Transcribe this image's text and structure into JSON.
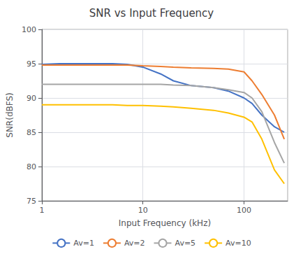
{
  "chart_data": {
    "type": "line",
    "title": "SNR vs Input Frequency",
    "x_label": "Input Frequency (kHz)",
    "y_label": "SNR(dBFS)",
    "log": "x",
    "xlim": [
      1,
      270
    ],
    "xticks": [
      1,
      10,
      100
    ],
    "ylim": [
      75,
      100
    ],
    "yticks": [
      75,
      80,
      85,
      90,
      95,
      100
    ],
    "grid": true,
    "legend": "bottom",
    "x": [
      1,
      1.5,
      2,
      3,
      5,
      7,
      10,
      15,
      20,
      30,
      50,
      70,
      100,
      120,
      150,
      200,
      250
    ],
    "series": [
      {
        "name": "Av=1",
        "color": "#4472C4",
        "values": [
          94.9,
          95.0,
          95.0,
          95.0,
          95.0,
          94.9,
          94.5,
          93.5,
          92.5,
          91.8,
          91.5,
          91.0,
          90.0,
          89.2,
          87.5,
          85.8,
          85.0
        ]
      },
      {
        "name": "Av=2",
        "color": "#ED7D31",
        "values": [
          94.8,
          94.8,
          94.8,
          94.8,
          94.8,
          94.8,
          94.7,
          94.6,
          94.5,
          94.4,
          94.3,
          94.2,
          93.8,
          92.5,
          90.5,
          87.5,
          84.0
        ]
      },
      {
        "name": "Av=5",
        "color": "#A5A5A5",
        "values": [
          92.0,
          92.0,
          92.0,
          92.0,
          92.0,
          92.0,
          92.0,
          92.0,
          91.9,
          91.8,
          91.5,
          91.2,
          90.8,
          90.0,
          88.0,
          83.5,
          80.5
        ]
      },
      {
        "name": "Av=10",
        "color": "#FFC000",
        "values": [
          89.0,
          89.0,
          89.0,
          89.0,
          89.0,
          88.9,
          88.9,
          88.8,
          88.7,
          88.5,
          88.2,
          87.8,
          87.2,
          86.5,
          84.0,
          79.5,
          77.5
        ]
      }
    ]
  }
}
